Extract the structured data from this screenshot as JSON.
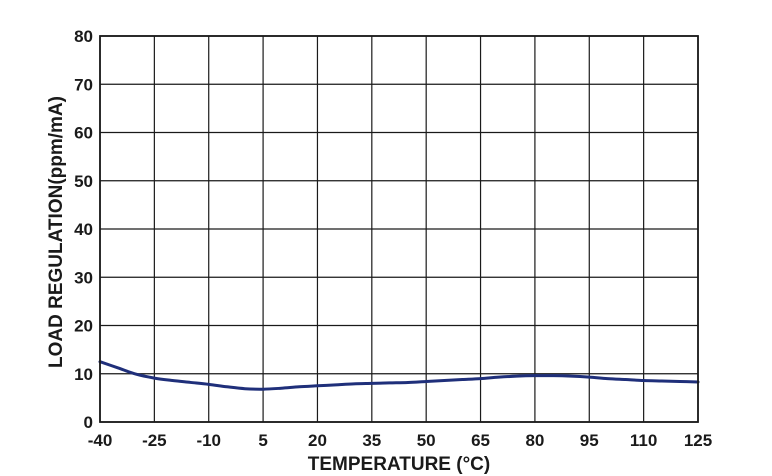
{
  "chart_data": {
    "type": "line",
    "title": "",
    "xlabel": "TEMPERATURE (°C)",
    "ylabel": "LOAD REGULATION(ppm/mA)",
    "xlim": [
      -40,
      125
    ],
    "ylim": [
      0,
      80
    ],
    "xticks": [
      -40,
      -25,
      -10,
      5,
      20,
      35,
      50,
      65,
      80,
      95,
      110,
      125
    ],
    "yticks": [
      0,
      10,
      20,
      30,
      40,
      50,
      60,
      70,
      80
    ],
    "grid": true,
    "legend": "none",
    "series": [
      {
        "color": "#1f2f7a",
        "x": [
          -40,
          -35,
          -30,
          -25,
          -20,
          -15,
          -10,
          -5,
          0,
          5,
          10,
          15,
          20,
          25,
          30,
          35,
          40,
          45,
          50,
          55,
          60,
          65,
          70,
          75,
          80,
          85,
          90,
          95,
          100,
          105,
          110,
          115,
          120,
          125
        ],
        "y": [
          12.5,
          11.2,
          9.9,
          9.1,
          8.6,
          8.2,
          7.8,
          7.3,
          6.9,
          6.8,
          7.0,
          7.3,
          7.5,
          7.7,
          7.9,
          8.0,
          8.1,
          8.2,
          8.4,
          8.6,
          8.8,
          9.0,
          9.3,
          9.5,
          9.6,
          9.6,
          9.5,
          9.3,
          9.0,
          8.8,
          8.6,
          8.5,
          8.4,
          8.3
        ]
      }
    ]
  }
}
